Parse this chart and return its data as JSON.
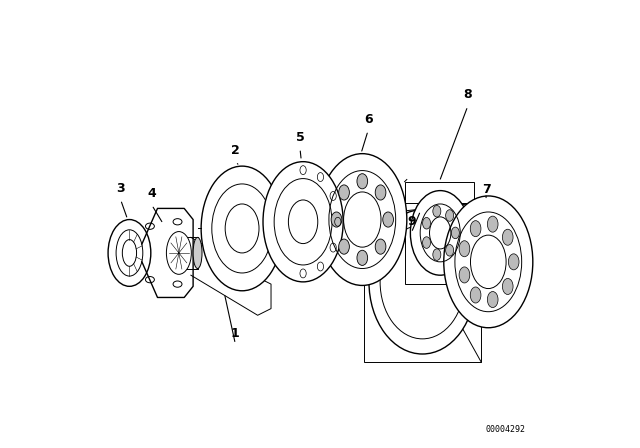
{
  "bg_color": "#ffffff",
  "line_color": "#000000",
  "fig_width": 6.4,
  "fig_height": 4.48,
  "dpi": 100,
  "diagram_id": "00004292"
}
